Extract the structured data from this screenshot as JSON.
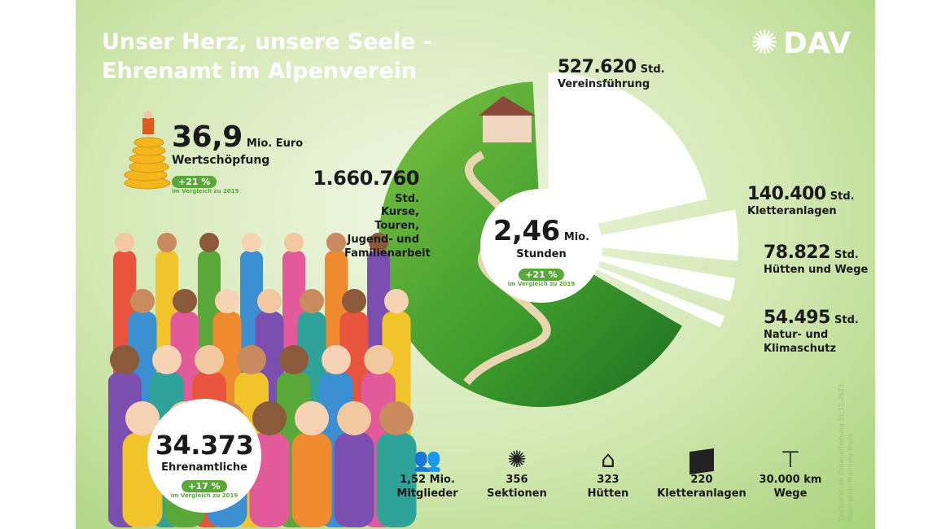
{
  "title": [
    "Unser Herz, unsere Seele -",
    "Ehrenamt im Alpenverein"
  ],
  "logo": "DAV",
  "value_creation": {
    "value": "36,9",
    "unit": "Mio. Euro",
    "label": "Wertschöpfung",
    "badge": "+21 %",
    "compare": "im Vergleich zu 2019"
  },
  "volunteers": {
    "value": "34.373",
    "label": "Ehrenamtliche",
    "badge": "+17 %",
    "compare": "im Vergleich zu 2019"
  },
  "hours": {
    "value": "2,46",
    "unit": "Mio.",
    "label": "Stunden",
    "badge": "+21 %",
    "compare": "im Vergleich zu 2019"
  },
  "chart_data": {
    "type": "pie",
    "slices": [
      {
        "value": "1.660.760",
        "unit": "Std.",
        "label": "Kurse, Touren, Jugend- und Familienarbeit",
        "hours": 1660760
      },
      {
        "value": "527.620",
        "unit": "Std.",
        "label": "Vereinsführung",
        "hours": 527620
      },
      {
        "value": "140.400",
        "unit": "Std.",
        "label": "Kletteranlagen",
        "hours": 140400
      },
      {
        "value": "78.822",
        "unit": "Std.",
        "label": "Hütten und Wege",
        "hours": 78822
      },
      {
        "value": "54.495",
        "unit": "Std.",
        "label": "Natur- und Klimaschutz",
        "hours": 54495
      }
    ],
    "colors": [
      "#4caf2e",
      "#ffffff",
      "#ffffff",
      "#ffffff",
      "#ffffff"
    ]
  },
  "stats": [
    {
      "icon": "people-icon",
      "value": "1,52 Mio.",
      "label": "Mitglieder"
    },
    {
      "icon": "edelweiss-icon",
      "value": "356",
      "label": "Sektionen"
    },
    {
      "icon": "hut-icon",
      "value": "323",
      "label": "Hütten"
    },
    {
      "icon": "climbing-wall-icon",
      "value": "220",
      "label": "Kletteranlagen"
    },
    {
      "icon": "signpost-icon",
      "value": "30.000 km",
      "label": "Wege"
    }
  ],
  "credits": [
    "Zeitpunkt der Datenerhebung 31.12.2023",
    "Illustration: Marmota Maps"
  ]
}
